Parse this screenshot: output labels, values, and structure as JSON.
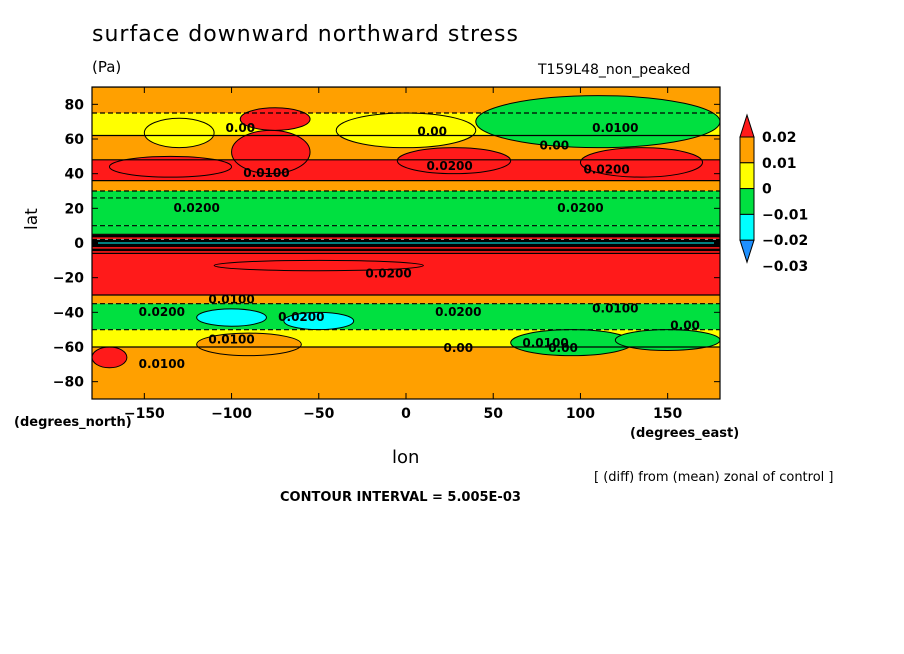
{
  "chart_data": {
    "type": "heatmap",
    "title": "surface downward northward stress",
    "units": "(Pa)",
    "run_label": "T159L48_non_peaked",
    "xlabel": "lon",
    "ylabel": "lat",
    "x_unit": "(degrees_east)",
    "y_unit": "(degrees_north)",
    "xlim": [
      -180,
      180
    ],
    "ylim": [
      -90,
      90
    ],
    "x_ticks": [
      -150,
      -100,
      -50,
      0,
      50,
      100,
      150
    ],
    "x_tick_labels": [
      "−150",
      "−100",
      "−50",
      "0",
      "50",
      "100",
      "150"
    ],
    "y_ticks": [
      80,
      60,
      40,
      20,
      0,
      -20,
      -40,
      -60,
      -80
    ],
    "y_tick_labels": [
      "80",
      "60",
      "40",
      "20",
      "0",
      "−20",
      "−40",
      "−60",
      "−80"
    ],
    "note": "[ (diff) from (mean) zonal of control ]",
    "contour_interval": "CONTOUR INTERVAL = 5.005E-03",
    "colorbar": {
      "levels": [
        -0.03,
        -0.02,
        -0.01,
        0,
        0.01,
        0.02
      ],
      "labels": [
        "0.02",
        "0.01",
        "0",
        "−0.01",
        "−0.02",
        "−0.03"
      ],
      "colors": [
        "#1e90ff",
        "#00ffff",
        "#00e040",
        "#ffff00",
        "#ffa000",
        "#ff1a1a"
      ]
    },
    "zonal_bands": [
      {
        "lat_min": 75,
        "lat_max": 90,
        "value": 0.005
      },
      {
        "lat_min": 62,
        "lat_max": 75,
        "value": -0.005
      },
      {
        "lat_min": 48,
        "lat_max": 62,
        "value": 0.008
      },
      {
        "lat_min": 36,
        "lat_max": 48,
        "value": 0.018
      },
      {
        "lat_min": 30,
        "lat_max": 36,
        "value": 0.008
      },
      {
        "lat_min": 26,
        "lat_max": 30,
        "value": -0.012
      },
      {
        "lat_min": 10,
        "lat_max": 26,
        "value": -0.018
      },
      {
        "lat_min": 5,
        "lat_max": 10,
        "value": -0.012
      },
      {
        "lat_min": 2,
        "lat_max": 5,
        "value": 0.022
      },
      {
        "lat_min": -2,
        "lat_max": 2,
        "value": -0.028
      },
      {
        "lat_min": -6,
        "lat_max": -2,
        "value": 0.022
      },
      {
        "lat_min": -30,
        "lat_max": -6,
        "value": 0.012
      },
      {
        "lat_min": -35,
        "lat_max": -30,
        "value": 0.005
      },
      {
        "lat_min": -50,
        "lat_max": -35,
        "value": -0.018
      },
      {
        "lat_min": -60,
        "lat_max": -50,
        "value": -0.005
      },
      {
        "lat_min": -90,
        "lat_max": -60,
        "value": 0.005
      }
    ],
    "anomalies": [
      {
        "lon_min": -170,
        "lon_max": -100,
        "lat_min": 38,
        "lat_max": 50,
        "value": 0.022
      },
      {
        "lon_min": -100,
        "lon_max": -55,
        "lat_min": 40,
        "lat_max": 65,
        "value": 0.022
      },
      {
        "lon_min": -5,
        "lon_max": 60,
        "lat_min": 40,
        "lat_max": 55,
        "value": 0.022
      },
      {
        "lon_min": 100,
        "lon_max": 170,
        "lat_min": 38,
        "lat_max": 55,
        "value": 0.022
      },
      {
        "lon_min": -150,
        "lon_max": -110,
        "lat_min": 55,
        "lat_max": 72,
        "value": -0.005
      },
      {
        "lon_min": -40,
        "lon_max": 40,
        "lat_min": 55,
        "lat_max": 75,
        "value": -0.005
      },
      {
        "lon_min": 40,
        "lon_max": 180,
        "lat_min": 55,
        "lat_max": 85,
        "value": -0.018
      },
      {
        "lon_min": -95,
        "lon_max": -55,
        "lat_min": 65,
        "lat_max": 78,
        "value": 0.012
      },
      {
        "lon_min": -110,
        "lon_max": 10,
        "lat_min": -16,
        "lat_max": -10,
        "value": 0.022
      },
      {
        "lon_min": -120,
        "lon_max": -80,
        "lat_min": -48,
        "lat_max": -38,
        "value": -0.028
      },
      {
        "lon_min": -70,
        "lon_max": -30,
        "lat_min": -50,
        "lat_max": -40,
        "value": -0.028
      },
      {
        "lon_min": 60,
        "lon_max": 130,
        "lat_min": -65,
        "lat_max": -50,
        "value": -0.018
      },
      {
        "lon_min": -180,
        "lon_max": -160,
        "lat_min": -72,
        "lat_max": -60,
        "value": 0.022
      },
      {
        "lon_min": -120,
        "lon_max": -60,
        "lat_min": -65,
        "lat_max": -52,
        "value": 0.008
      },
      {
        "lon_min": 120,
        "lon_max": 180,
        "lat_min": -62,
        "lat_max": -50,
        "value": -0.012
      }
    ],
    "contour_labels": [
      {
        "text": "0.0200",
        "lon": -120,
        "lat": 18
      },
      {
        "text": "0.0200",
        "lon": 100,
        "lat": 18
      },
      {
        "text": "0.0200",
        "lon": 25,
        "lat": 42
      },
      {
        "text": "0.0200",
        "lon": 115,
        "lat": 40
      },
      {
        "text": "0.0100",
        "lon": -80,
        "lat": 38
      },
      {
        "text": "0.0100",
        "lon": 120,
        "lat": 64
      },
      {
        "text": "0.0200",
        "lon": -10,
        "lat": -20
      },
      {
        "text": "0.0200",
        "lon": -140,
        "lat": -42
      },
      {
        "text": "0.0200",
        "lon": 30,
        "lat": -42
      },
      {
        "text": "0.0200",
        "lon": -60,
        "lat": -45
      },
      {
        "text": "0.0100",
        "lon": -100,
        "lat": -35
      },
      {
        "text": "0.0100",
        "lon": -100,
        "lat": -58
      },
      {
        "text": "0.0100",
        "lon": -140,
        "lat": -72
      },
      {
        "text": "0.0100",
        "lon": 120,
        "lat": -40
      },
      {
        "text": "0.0100",
        "lon": 80,
        "lat": -60
      },
      {
        "text": "0.00",
        "lon": -95,
        "lat": 64
      },
      {
        "text": "0.00",
        "lon": 15,
        "lat": 62
      },
      {
        "text": "0.00",
        "lon": 85,
        "lat": 54
      },
      {
        "text": "0.00",
        "lon": 30,
        "lat": -63
      },
      {
        "text": "0.00",
        "lon": 160,
        "lat": -50
      },
      {
        "text": "0.00",
        "lon": 90,
        "lat": -63
      }
    ]
  }
}
